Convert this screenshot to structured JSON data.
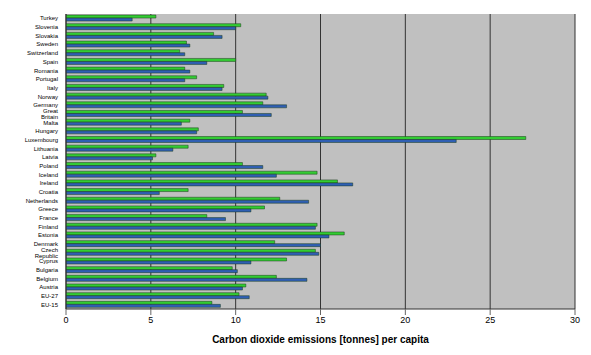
{
  "chart_data": {
    "type": "bar",
    "orientation": "horizontal",
    "x_label": "Carbon dioxide emissions [tonnes] per capita",
    "categories": [
      "Turkey",
      "Slovenia",
      "Slovakia",
      "Sweden",
      "Switzerland",
      "Spain",
      "Romania",
      "Portugal",
      "Italy",
      "Norway",
      "Germany",
      "Great Britain",
      "Malta",
      "Hungary",
      "Luxembourg",
      "Lithuania",
      "Latvia",
      "Poland",
      "Iceland",
      "Ireland",
      "Croatia",
      "Netherlands",
      "Greece",
      "France",
      "Finland",
      "Estonia",
      "Denmark",
      "Czech Republic",
      "Cyprus",
      "Bulgaria",
      "Belgium",
      "Austria",
      "EU-27",
      "EU-15"
    ],
    "series": [
      {
        "color": "#33cc33",
        "values": [
          5.3,
          10.3,
          8.7,
          7.1,
          6.7,
          10.0,
          7.0,
          7.7,
          9.3,
          11.8,
          11.6,
          10.4,
          7.3,
          7.8,
          27.1,
          7.2,
          5.3,
          10.4,
          14.8,
          16.0,
          7.2,
          12.6,
          11.7,
          8.3,
          14.8,
          16.4,
          12.3,
          14.7,
          13.0,
          9.8,
          12.4,
          10.6,
          10.2,
          8.6
        ]
      },
      {
        "color": "#2f5fb3",
        "values": [
          3.9,
          10.0,
          9.2,
          7.3,
          7.0,
          8.3,
          7.3,
          7.0,
          9.2,
          11.9,
          13.0,
          12.1,
          6.8,
          7.7,
          23.0,
          6.3,
          5.1,
          11.6,
          12.4,
          16.9,
          5.5,
          14.3,
          10.9,
          9.4,
          14.7,
          15.5,
          15.0,
          14.9,
          10.9,
          10.1,
          14.2,
          10.4,
          10.8,
          9.1
        ]
      }
    ],
    "xlim": [
      0,
      30
    ],
    "xticks": [
      0,
      5,
      10,
      15,
      20,
      25,
      30
    ],
    "grid": true
  }
}
